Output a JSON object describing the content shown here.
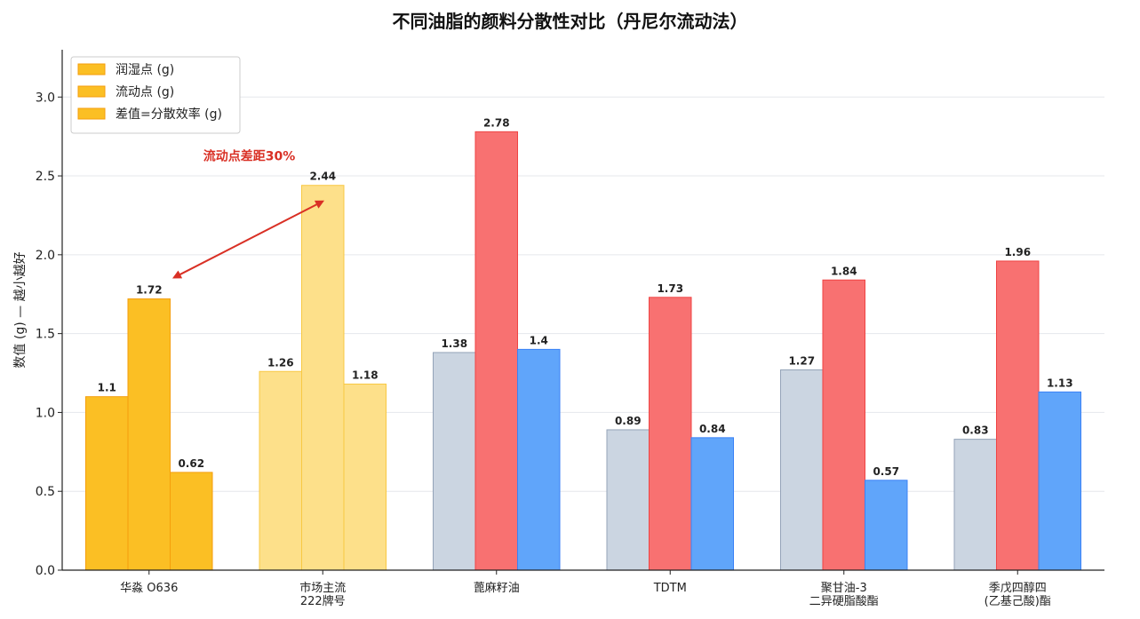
{
  "chart_data": {
    "type": "bar",
    "title": "不同油脂的颜料分散性对比（丹尼尔流动法）",
    "ylabel": "数值 (g) — 越小越好",
    "xlabel": "",
    "ylim": [
      0,
      3.3
    ],
    "yticks": [
      "0.0",
      "0.5",
      "1.0",
      "1.5",
      "2.0",
      "2.5",
      "3.0"
    ],
    "grid": "horizontal",
    "legend_position": "top-left",
    "categories": [
      [
        "华淼 O636"
      ],
      [
        "市场主流",
        "222牌号"
      ],
      [
        "蓖麻籽油"
      ],
      [
        "TDTM"
      ],
      [
        "聚甘油-3",
        "二异硬脂酸酯"
      ],
      [
        "季戊四醇四",
        "(乙基己酸)酯"
      ]
    ],
    "series": [
      {
        "name": "润湿点 (g)",
        "values": [
          1.1,
          1.26,
          1.38,
          0.89,
          1.27,
          0.83
        ]
      },
      {
        "name": "流动点 (g)",
        "values": [
          1.72,
          2.44,
          2.78,
          1.73,
          1.84,
          1.96
        ]
      },
      {
        "name": "差值=分散效率 (g)",
        "values": [
          0.62,
          1.18,
          1.4,
          0.84,
          0.57,
          1.13
        ]
      }
    ],
    "value_labels": [
      [
        "1.1",
        "1.72",
        "0.62"
      ],
      [
        "1.26",
        "2.44",
        "1.18"
      ],
      [
        "1.38",
        "2.78",
        "1.4"
      ],
      [
        "0.89",
        "1.73",
        "0.84"
      ],
      [
        "1.27",
        "1.84",
        "0.57"
      ],
      [
        "0.83",
        "1.96",
        "1.13"
      ]
    ],
    "group_colors": [
      {
        "fill": [
          "#fbbf24",
          "#fbbf24",
          "#fbbf24"
        ],
        "stroke": "#f59e0b",
        "legend_fill": "#fbbf24"
      },
      {
        "fill": [
          "#fde08a",
          "#fde08a",
          "#fde08a"
        ],
        "stroke": "#f8c843"
      },
      {
        "fill": [
          "#cbd5e1",
          "#f87171",
          "#60a5fa"
        ],
        "stroke": [
          "#94a3b8",
          "#ef4444",
          "#3b82f6"
        ]
      },
      {
        "fill": [
          "#cbd5e1",
          "#f87171",
          "#60a5fa"
        ],
        "stroke": [
          "#94a3b8",
          "#ef4444",
          "#3b82f6"
        ]
      },
      {
        "fill": [
          "#cbd5e1",
          "#f87171",
          "#60a5fa"
        ],
        "stroke": [
          "#94a3b8",
          "#ef4444",
          "#3b82f6"
        ]
      },
      {
        "fill": [
          "#cbd5e1",
          "#f87171",
          "#60a5fa"
        ],
        "stroke": [
          "#94a3b8",
          "#ef4444",
          "#3b82f6"
        ]
      }
    ],
    "annotation": {
      "text": "流动点差距30%",
      "color": "#d93025",
      "from": {
        "category_index": 1,
        "series_index": 1
      },
      "to": {
        "category_index": 0,
        "series_index": 1
      }
    }
  }
}
